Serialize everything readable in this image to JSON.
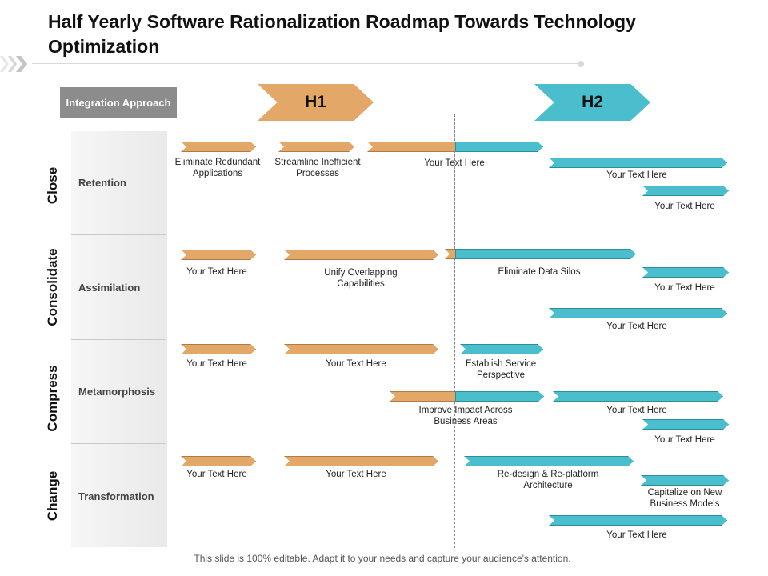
{
  "title": "Half Yearly Software Rationalization Roadmap Towards Technology Optimization",
  "colors": {
    "h1": "#e3a768",
    "h2": "#4bbecd"
  },
  "header": {
    "approach": "Integration Approach",
    "h1": "H1",
    "h2": "H2"
  },
  "approaches": [
    "Close",
    "Consolidate",
    "Compress",
    "Change"
  ],
  "categories": [
    "Retention",
    "Assimilation",
    "Metamorphosis",
    "Transformation"
  ],
  "tasks": {
    "retention": {
      "eliminate_redundant": "Eliminate Redundant Applications",
      "streamline": "Streamline Inefficient Processes",
      "split_1": "Your Text Here",
      "h2_a": "Your Text Here",
      "h2_b": "Your Text Here"
    },
    "assimilation": {
      "h1_a": "Your Text Here",
      "unify": "Unify Overlapping Capabilities",
      "data_silos": "Eliminate Data Silos",
      "h2_a": "Your Text Here",
      "h2_b": "Your Text Here"
    },
    "metamorphosis": {
      "h1_a": "Your Text Here",
      "h1_b": "Your Text Here",
      "service": "Establish Service Perspective",
      "improve": "Improve Impact Across Business Areas",
      "h2_a": "Your Text Here",
      "h2_b": "Your Text Here"
    },
    "transformation": {
      "h1_a": "Your Text Here",
      "h1_b": "Your Text Here",
      "redesign": "Re-design & Re-platform Architecture",
      "capitalize": "Capitalize on New Business Models",
      "h2_a": "Your Text Here"
    }
  },
  "footer": "This slide is 100% editable. Adapt it to your needs and capture your audience's attention."
}
